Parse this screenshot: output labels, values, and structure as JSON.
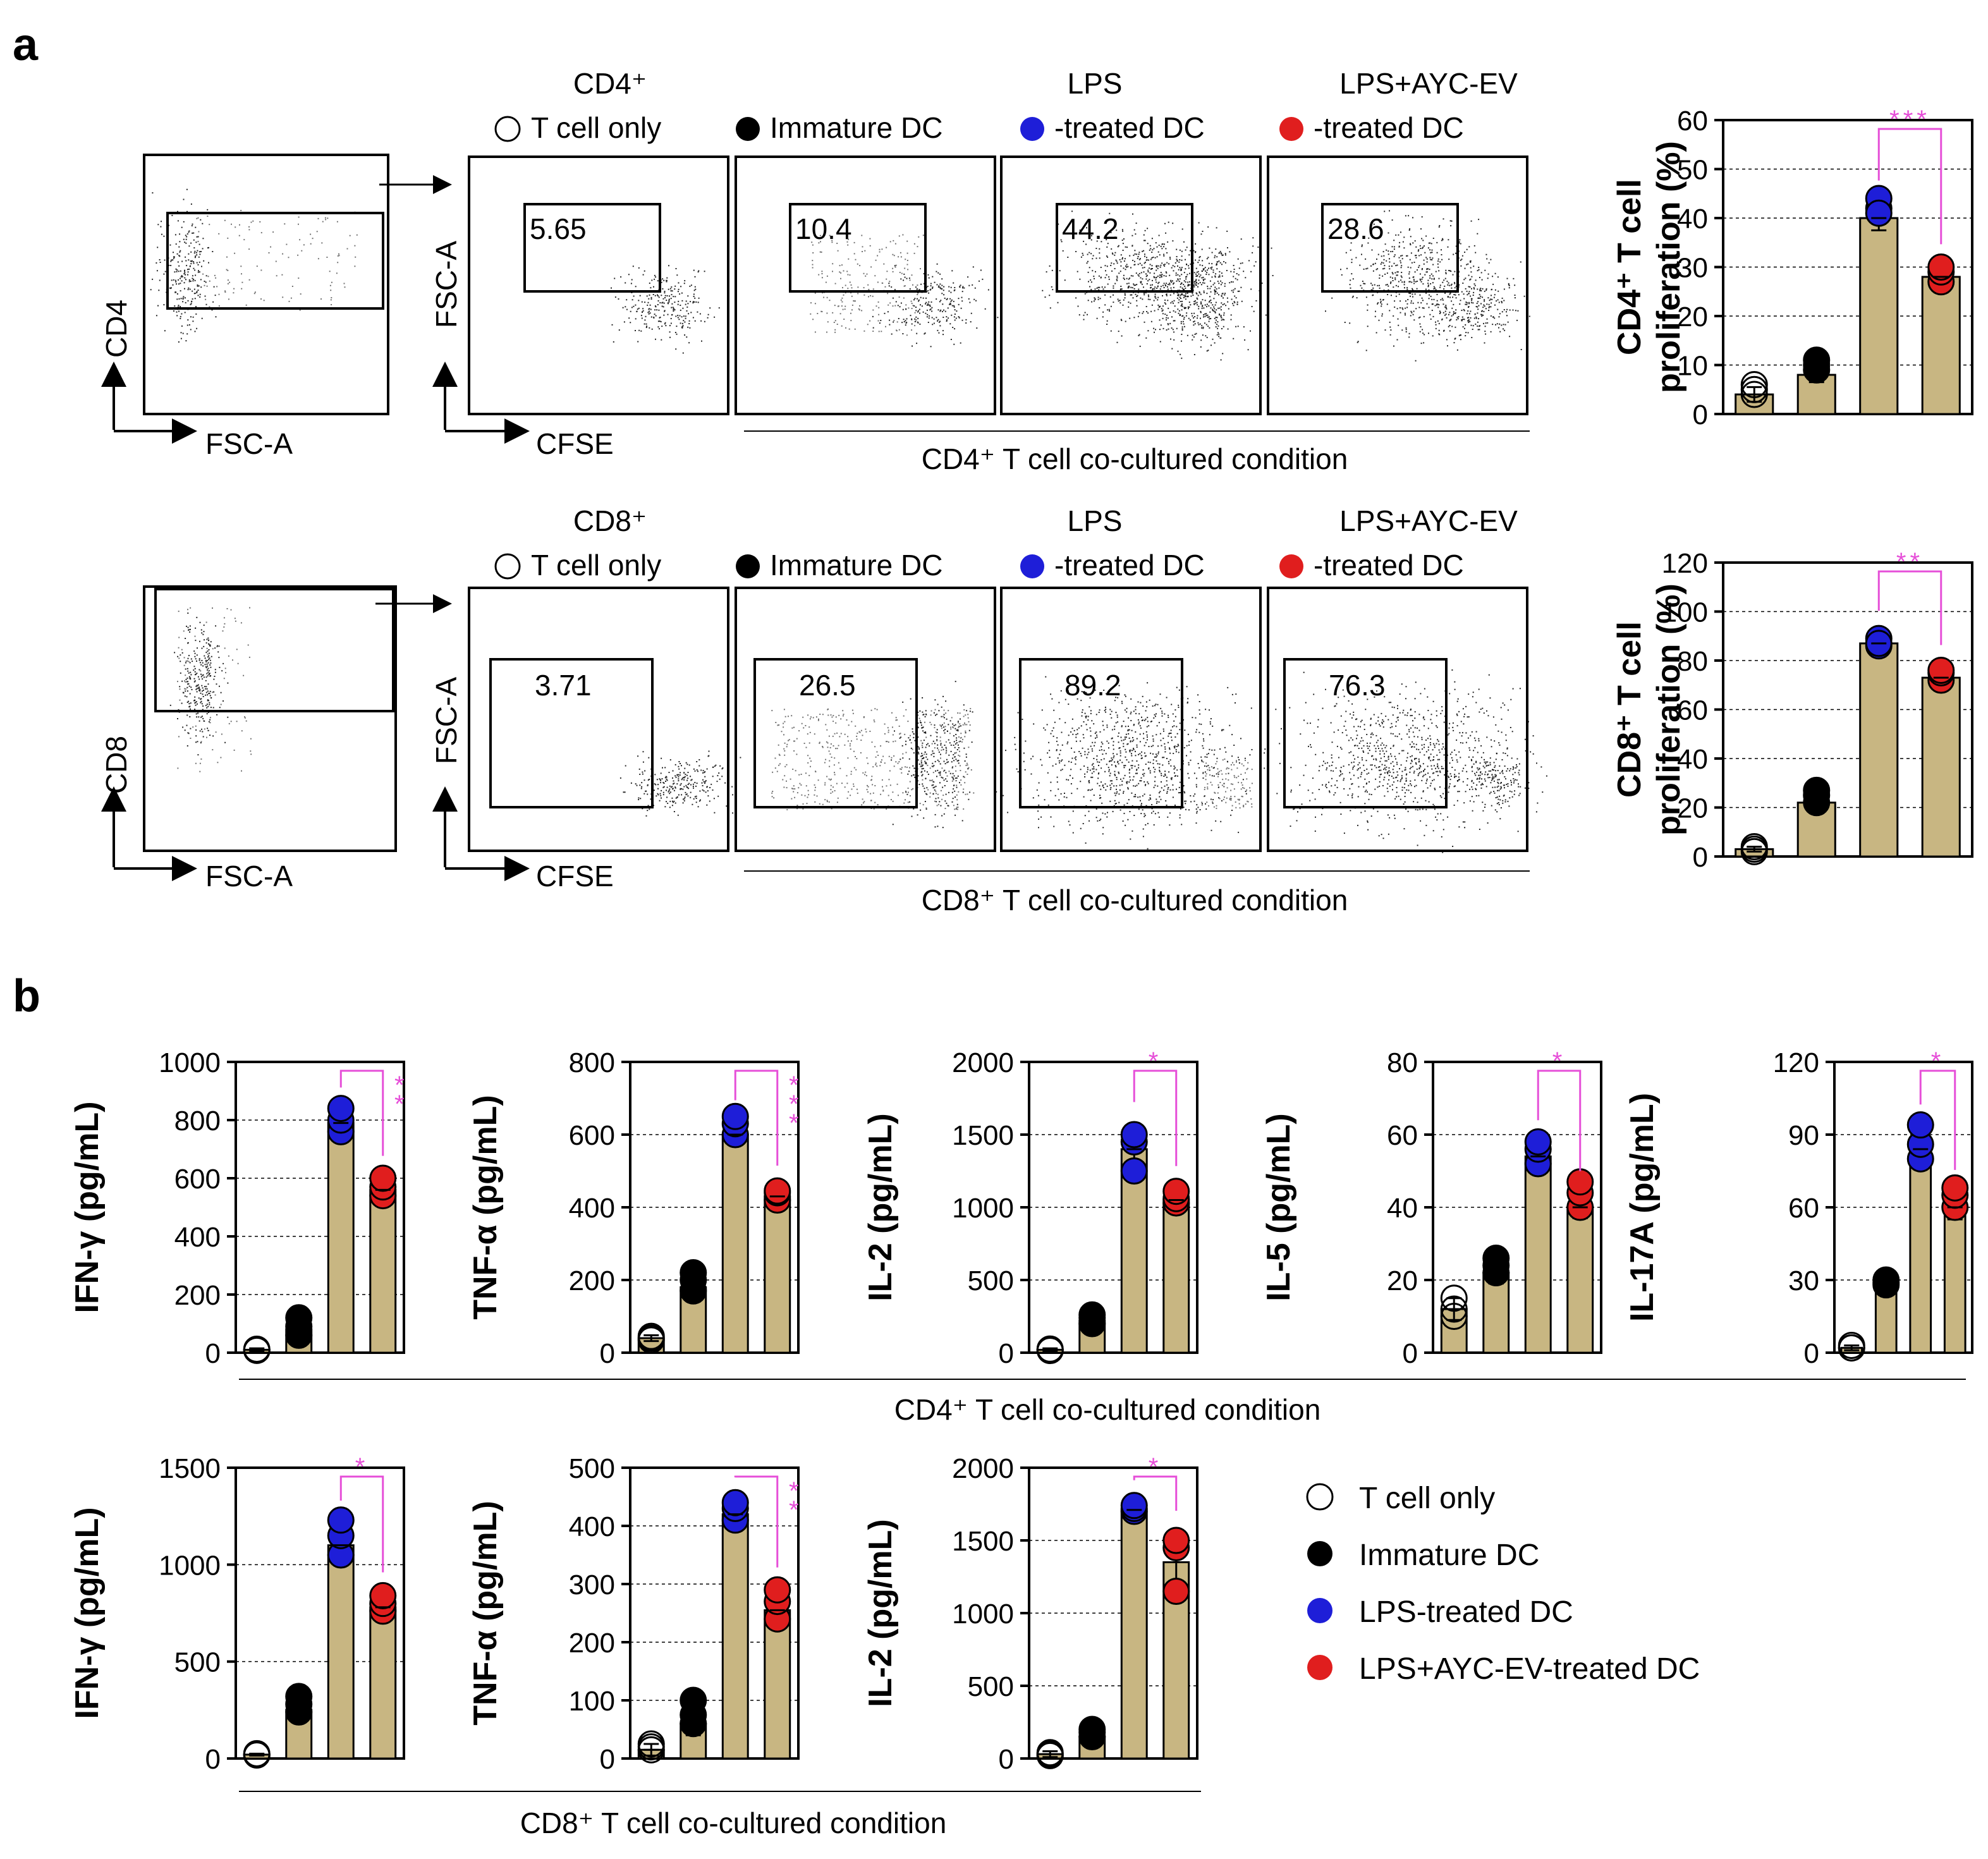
{
  "panel_labels": {
    "a": "a",
    "b": "b"
  },
  "colors": {
    "bar": "#C8B682",
    "t_only": "#ffffff",
    "immature": "#000000",
    "lps": "#1E1ED8",
    "lps_ayc": "#E01E1E",
    "sig": "#E64FD8"
  },
  "flow": {
    "cd4": {
      "marker": "CD4",
      "col_headers": [
        {
          "line1": "CD4⁺",
          "line2": "T cell only",
          "dot": "t_only"
        },
        {
          "line1": "",
          "line2": "Immature DC",
          "dot": "immature"
        },
        {
          "line1": "LPS",
          "line2": "-treated DC",
          "dot": "lps"
        },
        {
          "line1": "LPS+AYC-EV",
          "line2": "-treated DC",
          "dot": "lps_ayc"
        }
      ],
      "gate_axes": {
        "y": "CD4",
        "x": "FSC-A"
      },
      "plot_axes": {
        "y": "FSC-A",
        "x": "CFSE"
      },
      "gate_values": [
        "5.65",
        "10.4",
        "44.2",
        "28.6"
      ],
      "condition_label": "CD4⁺ T cell co-cultured condition"
    },
    "cd8": {
      "marker": "CD8",
      "col_headers": [
        {
          "line1": "CD8⁺",
          "line2": "T cell only",
          "dot": "t_only"
        },
        {
          "line1": "",
          "line2": "Immature DC",
          "dot": "immature"
        },
        {
          "line1": "LPS",
          "line2": "-treated DC",
          "dot": "lps"
        },
        {
          "line1": "LPS+AYC-EV",
          "line2": "-treated DC",
          "dot": "lps_ayc"
        }
      ],
      "gate_axes": {
        "y": "CD8",
        "x": "FSC-A"
      },
      "plot_axes": {
        "y": "FSC-A",
        "x": "CFSE"
      },
      "gate_values": [
        "3.71",
        "26.5",
        "89.2",
        "76.3"
      ],
      "condition_label": "CD8⁺ T cell co-cultured condition"
    }
  },
  "chart_data": [
    {
      "id": "cd4_prolif",
      "type": "bar",
      "ylabel_line1": "CD4⁺ T cell",
      "ylabel_line2": "proliferation (%)",
      "ylim": [
        0,
        60
      ],
      "yticks": [
        0,
        10,
        20,
        30,
        40,
        50,
        60
      ],
      "values": [
        4,
        8,
        40,
        28
      ],
      "errors": [
        1.5,
        1.5,
        2.5,
        1.5
      ],
      "points": [
        [
          5,
          6,
          4
        ],
        [
          9,
          10,
          11
        ],
        [
          42,
          44,
          41
        ],
        [
          27,
          29,
          30
        ]
      ],
      "sig": {
        "from": 2,
        "to": 3,
        "label": "***"
      }
    },
    {
      "id": "cd8_prolif",
      "type": "bar",
      "ylabel_line1": "CD8⁺ T cell",
      "ylabel_line2": "proliferation (%)",
      "ylim": [
        0,
        120
      ],
      "yticks": [
        0,
        20,
        40,
        60,
        80,
        100,
        120
      ],
      "values": [
        3,
        22,
        87,
        73
      ],
      "errors": [
        1,
        2,
        3,
        3
      ],
      "points": [
        [
          3,
          4,
          2
        ],
        [
          22,
          25,
          27
        ],
        [
          86,
          89,
          87
        ],
        [
          72,
          75,
          76
        ]
      ],
      "sig": {
        "from": 2,
        "to": 3,
        "label": "**"
      }
    },
    {
      "id": "cd4_ifng",
      "type": "bar",
      "ylabel": "IFN-γ (pg/mL)",
      "ylim": [
        0,
        1000
      ],
      "yticks": [
        0,
        200,
        400,
        600,
        800,
        1000
      ],
      "values": [
        10,
        80,
        790,
        560
      ],
      "errors": [
        5,
        25,
        35,
        30
      ],
      "points": [
        [
          10,
          8,
          12
        ],
        [
          60,
          90,
          120
        ],
        [
          760,
          800,
          840
        ],
        [
          540,
          570,
          600
        ]
      ],
      "sig": {
        "from": 2,
        "to": 3,
        "label": "**",
        "vertical": true
      }
    },
    {
      "id": "cd4_tnfa",
      "type": "bar",
      "ylabel": "TNF-α (pg/mL)",
      "ylim": [
        0,
        800
      ],
      "yticks": [
        0,
        200,
        400,
        600,
        800
      ],
      "values": [
        40,
        180,
        600,
        430
      ],
      "errors": [
        8,
        20,
        25,
        15
      ],
      "points": [
        [
          40,
          45,
          35
        ],
        [
          170,
          200,
          220
        ],
        [
          600,
          630,
          650
        ],
        [
          420,
          440,
          445
        ]
      ],
      "sig": {
        "from": 2,
        "to": 3,
        "label": "***",
        "vertical": true
      }
    },
    {
      "id": "cd4_il2",
      "type": "bar",
      "ylabel": "IL-2 (pg/mL)",
      "ylim": [
        0,
        2000
      ],
      "yticks": [
        0,
        500,
        1000,
        1500,
        2000
      ],
      "values": [
        20,
        220,
        1400,
        1050
      ],
      "errors": [
        10,
        40,
        150,
        60
      ],
      "points": [
        [
          20,
          25,
          15
        ],
        [
          200,
          240,
          260
        ],
        [
          1250,
          1450,
          1500
        ],
        [
          1030,
          1060,
          1110
        ]
      ],
      "sig": {
        "from": 2,
        "to": 3,
        "label": "*"
      }
    },
    {
      "id": "cd4_il5",
      "type": "bar",
      "ylabel": "IL-5 (pg/mL)",
      "ylim": [
        0,
        80
      ],
      "yticks": [
        0,
        20,
        40,
        60,
        80
      ],
      "values": [
        12,
        22,
        54,
        40
      ],
      "errors": [
        3,
        3,
        3,
        3
      ],
      "points": [
        [
          10,
          15,
          12
        ],
        [
          22,
          24,
          26
        ],
        [
          52,
          56,
          58
        ],
        [
          40,
          44,
          47
        ]
      ],
      "sig": {
        "from": 2,
        "to": 3,
        "label": "*"
      }
    },
    {
      "id": "cd4_il17a",
      "type": "bar",
      "ylabel": "IL-17A (pg/mL)",
      "ylim": [
        0,
        120
      ],
      "yticks": [
        0,
        30,
        60,
        90,
        120
      ],
      "values": [
        2,
        27,
        84,
        60
      ],
      "errors": [
        1,
        2,
        8,
        5
      ],
      "points": [
        [
          2,
          3,
          2
        ],
        [
          28,
          30,
          29
        ],
        [
          80,
          86,
          94
        ],
        [
          60,
          65,
          68
        ]
      ],
      "sig": {
        "from": 2,
        "to": 3,
        "label": "*"
      }
    },
    {
      "id": "cd8_ifng",
      "type": "bar",
      "ylabel": "IFN-γ (pg/mL)",
      "ylim": [
        0,
        1500
      ],
      "yticks": [
        0,
        500,
        1000,
        1500
      ],
      "values": [
        20,
        250,
        1100,
        780
      ],
      "errors": [
        5,
        40,
        100,
        50
      ],
      "points": [
        [
          20,
          25,
          18
        ],
        [
          240,
          280,
          320
        ],
        [
          1050,
          1150,
          1230
        ],
        [
          760,
          800,
          840
        ]
      ],
      "sig": {
        "from": 2,
        "to": 3,
        "label": "*"
      }
    },
    {
      "id": "cd8_tnfa",
      "type": "bar",
      "ylabel": "TNF-α (pg/mL)",
      "ylim": [
        0,
        500
      ],
      "yticks": [
        0,
        100,
        200,
        300,
        400,
        500
      ],
      "values": [
        15,
        60,
        420,
        255
      ],
      "errors": [
        10,
        20,
        20,
        30
      ],
      "points": [
        [
          15,
          20,
          25
        ],
        [
          60,
          75,
          100
        ],
        [
          410,
          430,
          440
        ],
        [
          240,
          270,
          290
        ]
      ],
      "sig": {
        "from": 2,
        "to": 3,
        "label": "**",
        "vertical": true
      }
    },
    {
      "id": "cd8_il2",
      "type": "bar",
      "ylabel": "IL-2 (pg/mL)",
      "ylim": [
        0,
        2000
      ],
      "yticks": [
        0,
        500,
        1000,
        1500,
        2000
      ],
      "values": [
        30,
        150,
        1710,
        1350
      ],
      "errors": [
        20,
        20,
        30,
        180
      ],
      "points": [
        [
          30,
          40,
          20
        ],
        [
          150,
          180,
          200
        ],
        [
          1700,
          1720,
          1740
        ],
        [
          1150,
          1450,
          1500
        ]
      ],
      "sig": {
        "from": 2,
        "to": 3,
        "label": "*"
      }
    }
  ],
  "b_conditions": {
    "cd4": "CD4⁺ T cell co-cultured condition",
    "cd8": "CD8⁺ T cell co-cultured condition"
  },
  "legend": [
    {
      "label": "T cell only",
      "color_key": "t_only"
    },
    {
      "label": "Immature DC",
      "color_key": "immature"
    },
    {
      "label": "LPS-treated DC",
      "color_key": "lps"
    },
    {
      "label": "LPS+AYC-EV-treated DC",
      "color_key": "lps_ayc"
    }
  ]
}
